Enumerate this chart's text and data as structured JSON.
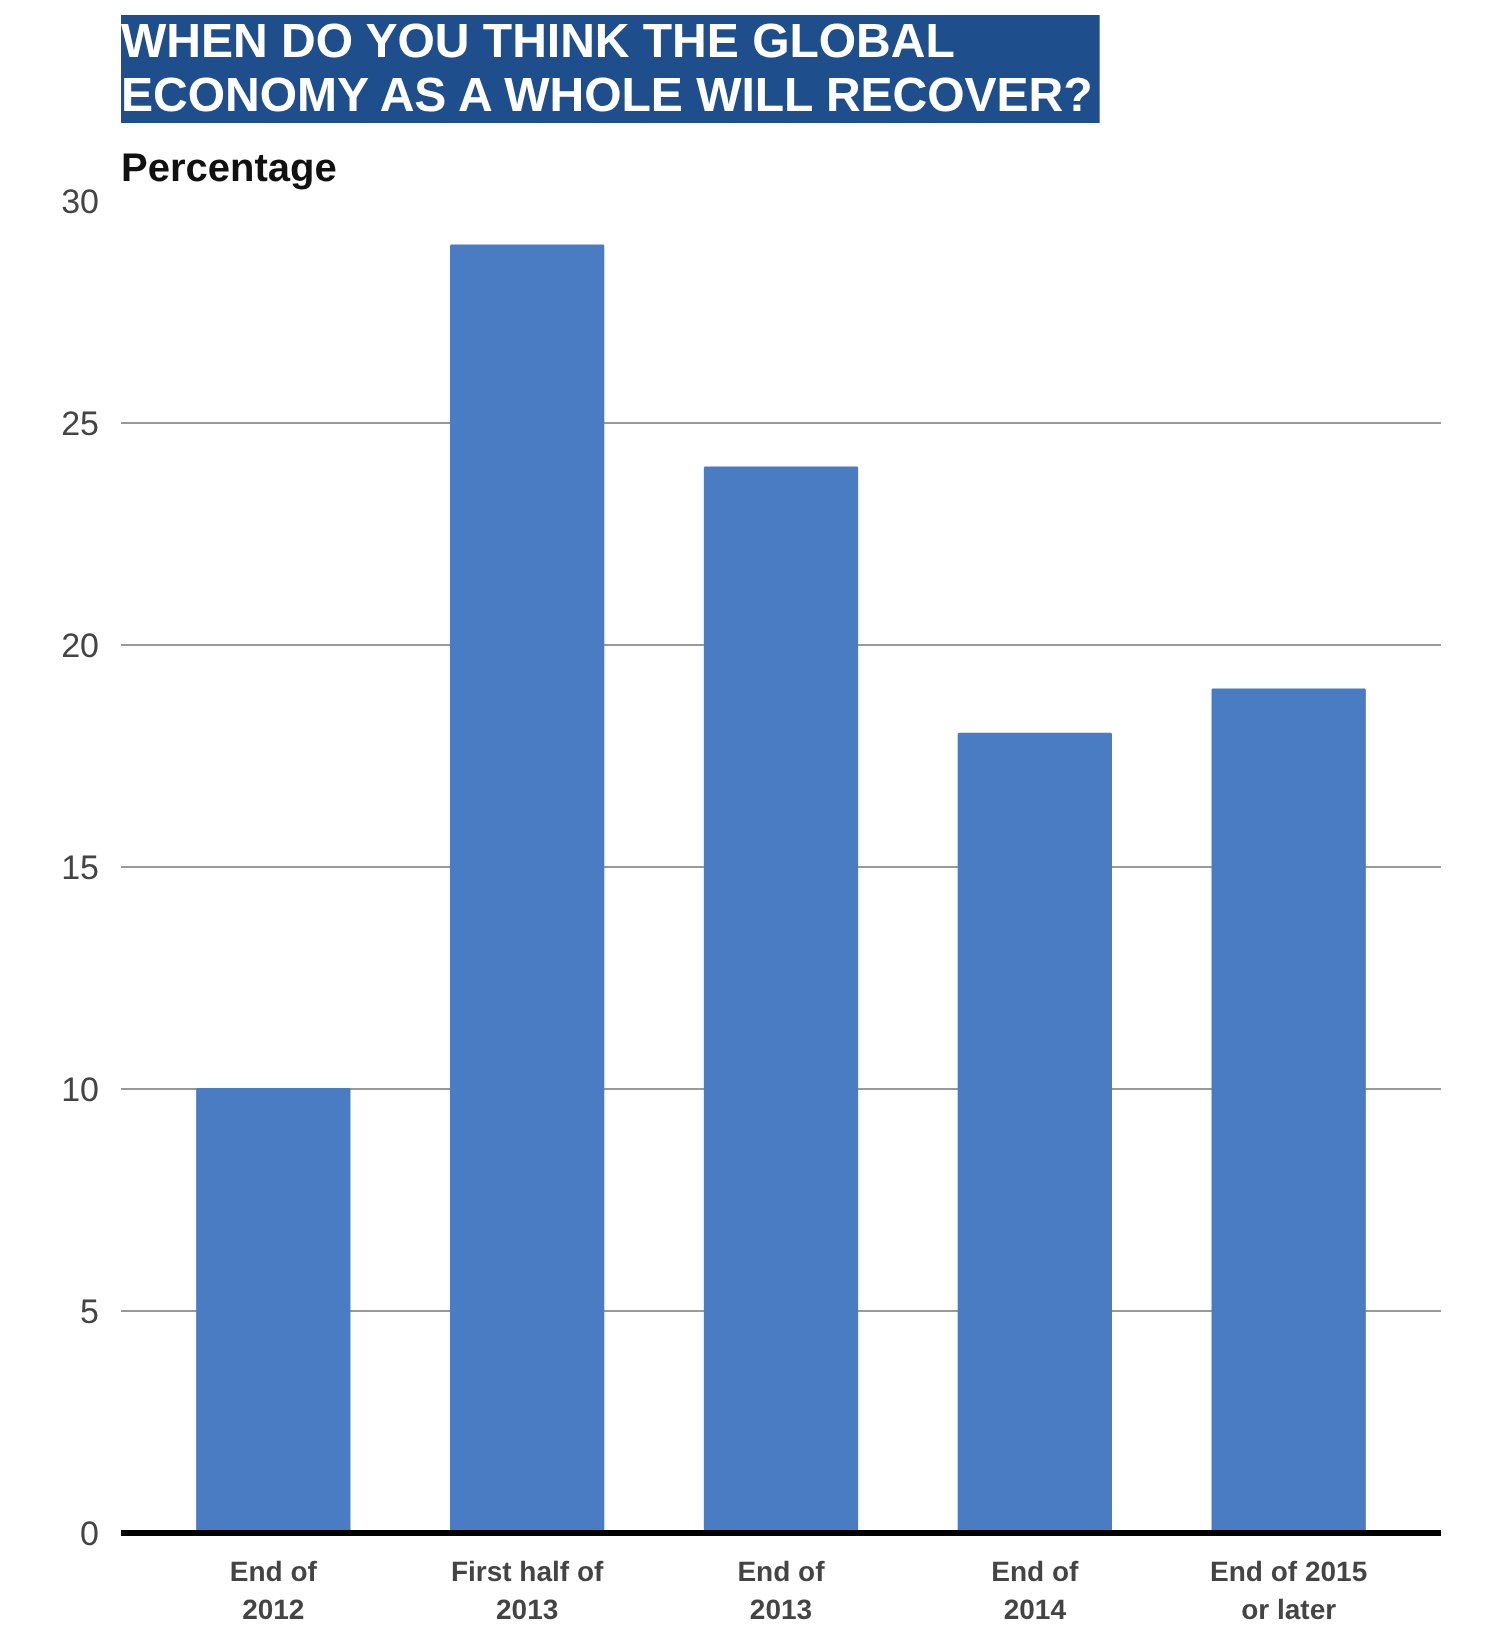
{
  "chart_data": {
    "type": "bar",
    "title": "WHEN DO YOU THINK THE GLOBAL\nECONOMY AS A WHOLE WILL RECOVER?",
    "ylabel": "Percentage",
    "categories": [
      "End of\n2012",
      "First half of\n2013",
      "End of\n2013",
      "End of\n2014",
      "End of 2015\nor later"
    ],
    "values": [
      10,
      29,
      24,
      18,
      19
    ],
    "color": "#4a7cc4",
    "ylim": [
      0,
      30
    ],
    "yticks": [
      0,
      5,
      10,
      15,
      20,
      25,
      30
    ],
    "grid": "y"
  }
}
